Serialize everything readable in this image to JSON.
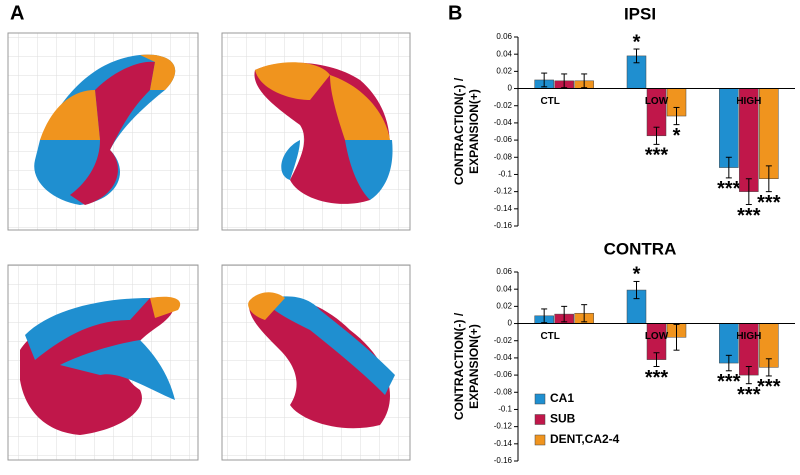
{
  "panel_labels": [
    "A",
    "B"
  ],
  "chart_data": [
    {
      "type": "bar",
      "title": "IPSI",
      "ylabel": [
        "CONTRACTION(-) /",
        "EXPANSION(+)"
      ],
      "categories": [
        "CTL",
        "LOW",
        "HIGH"
      ],
      "series": [
        {
          "color": "#1f8fd0",
          "values": [
            0.01,
            0.038,
            -0.092
          ],
          "errors": [
            0.008,
            0.008,
            0.012
          ],
          "significance": [
            null,
            "*",
            "***"
          ]
        },
        {
          "color": "#c0174a",
          "values": [
            0.009,
            -0.055,
            -0.12
          ],
          "errors": [
            0.008,
            0.01,
            0.015
          ],
          "significance": [
            null,
            "***",
            "***"
          ]
        },
        {
          "color": "#f0941e",
          "values": [
            0.009,
            -0.032,
            -0.105
          ],
          "errors": [
            0.008,
            0.01,
            0.015
          ],
          "significance": [
            null,
            "*",
            "***"
          ]
        }
      ],
      "ylim": [
        -0.16,
        0.06
      ],
      "yticks": [
        -0.16,
        -0.14,
        -0.12,
        -0.1,
        -0.08,
        -0.06,
        -0.04,
        -0.02,
        0,
        0.02,
        0.04,
        0.06
      ],
      "legend": false
    },
    {
      "type": "bar",
      "title": "CONTRA",
      "ylabel": [
        "CONTRACTION(-) /",
        "EXPANSION(+)"
      ],
      "categories": [
        "CTL",
        "LOW",
        "HIGH"
      ],
      "series": [
        {
          "name": "CA1",
          "color": "#1f8fd0",
          "values": [
            0.009,
            0.039,
            -0.046
          ],
          "errors": [
            0.008,
            0.01,
            0.009
          ],
          "significance": [
            null,
            "*",
            "***"
          ]
        },
        {
          "name": "SUB",
          "color": "#c0174a",
          "values": [
            0.011,
            -0.042,
            -0.06
          ],
          "errors": [
            0.009,
            0.008,
            0.01
          ],
          "significance": [
            null,
            "***",
            "***"
          ]
        },
        {
          "name": "DENT,CA2-4",
          "color": "#f0941e",
          "values": [
            0.012,
            -0.016,
            -0.051
          ],
          "errors": [
            0.01,
            0.015,
            0.01
          ],
          "significance": [
            null,
            null,
            "***"
          ]
        }
      ],
      "ylim": [
        -0.16,
        0.06
      ],
      "yticks": [
        -0.16,
        -0.14,
        -0.12,
        -0.1,
        -0.08,
        -0.06,
        -0.04,
        -0.02,
        0,
        0.02,
        0.04,
        0.06
      ],
      "legend": true
    }
  ]
}
